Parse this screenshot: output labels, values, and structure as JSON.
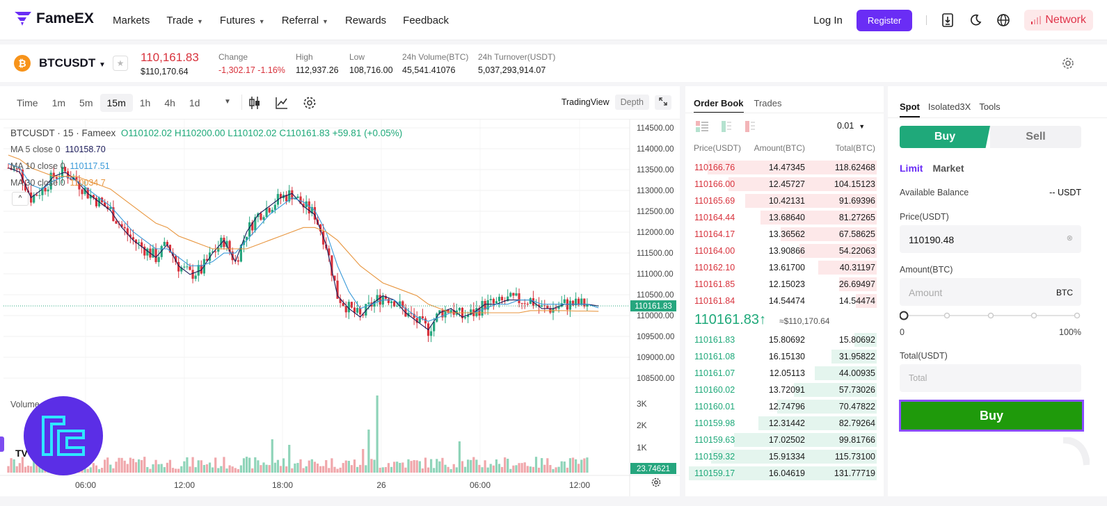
{
  "nav": {
    "brand": "FameEX",
    "links": [
      {
        "label": "Markets",
        "dropdown": false
      },
      {
        "label": "Trade",
        "dropdown": true
      },
      {
        "label": "Futures",
        "dropdown": true
      },
      {
        "label": "Referral",
        "dropdown": true
      },
      {
        "label": "Rewards",
        "dropdown": false
      },
      {
        "label": "Feedback",
        "dropdown": false
      }
    ],
    "login": "Log In",
    "register": "Register",
    "network": "Network",
    "colors": {
      "accent": "#6a2df5",
      "network": "#e0344a"
    }
  },
  "ticker": {
    "pair": "BTCUSDT",
    "coin_symbol": "₿",
    "price": "110,161.83",
    "price_usd": "$110,170.64",
    "stats": [
      {
        "label": "Change",
        "value": "-1,302.17 -1.16%",
        "tone": "red"
      },
      {
        "label": "High",
        "value": "112,937.26",
        "tone": ""
      },
      {
        "label": "Low",
        "value": "108,716.00",
        "tone": ""
      },
      {
        "label": "24h Volume(BTC)",
        "value": "45,541.41076",
        "tone": ""
      },
      {
        "label": "24h Turnover(USDT)",
        "value": "5,037,293,914.07",
        "tone": ""
      }
    ]
  },
  "chart": {
    "timeframes": [
      "Time",
      "1m",
      "5m",
      "15m",
      "1h",
      "4h",
      "1d"
    ],
    "active_timeframe": "15m",
    "view_tradingview": "TradingView",
    "view_depth": "Depth",
    "legend": {
      "symbol": "BTCUSDT · 15 · Fameex",
      "o": "O110102.02",
      "h": "H110200.00",
      "l": "L110102.02",
      "c": "C110161.83",
      "chg": "+59.81 (+0.05%)"
    },
    "ma": [
      {
        "label": "MA 5 close 0",
        "value": "110158.70",
        "color": "#1b1b5a"
      },
      {
        "label": "MA 10 close 0",
        "value": "110117.51",
        "color": "#3a9ad9"
      },
      {
        "label": "MA 30 close 0",
        "value": "110034.7",
        "color": "#e8963f"
      }
    ],
    "volume_label": "Volume",
    "last_price_tag": "110161.83",
    "volume_tag": "23.74621",
    "colors": {
      "up": "#26a67e",
      "down": "#d8323c"
    }
  },
  "chart_data": {
    "type": "line",
    "title": "BTCUSDT · 15 · Fameex",
    "xlabel": "",
    "ylabel": "",
    "y_ticks": [
      "114500.00",
      "114000.00",
      "113500.00",
      "113000.00",
      "112500.00",
      "112000.00",
      "111500.00",
      "111000.00",
      "110500.00",
      "110000.00",
      "109500.00",
      "109000.00",
      "108500.00"
    ],
    "ylim": [
      108500,
      114500
    ],
    "volume_ticks": [
      "3K",
      "2K",
      "1K"
    ],
    "x_ticks": [
      "06:00",
      "12:00",
      "18:00",
      "26",
      "06:00",
      "12:00"
    ],
    "x": [
      0,
      4,
      8,
      12,
      16,
      20,
      24,
      28,
      32,
      36,
      40,
      44,
      48,
      52,
      56,
      60,
      64,
      68,
      72,
      76,
      80,
      84,
      88,
      92,
      96,
      100,
      104,
      108,
      112,
      116,
      120,
      124,
      128,
      132,
      136,
      140,
      144,
      148,
      152,
      156,
      160,
      164,
      168,
      172,
      176,
      180,
      184,
      188,
      192,
      196,
      200,
      204,
      208
    ],
    "series": [
      {
        "name": "MA 5 close 0",
        "color": "#1b1b5a",
        "values": [
          113400,
          113300,
          112700,
          112900,
          113200,
          113300,
          113100,
          112800,
          112600,
          112400,
          112000,
          111700,
          111500,
          111300,
          111600,
          111100,
          110900,
          111000,
          111400,
          111700,
          111200,
          111900,
          112300,
          112500,
          112700,
          112800,
          112500,
          112300,
          111600,
          110400,
          110100,
          109900,
          110200,
          110400,
          110300,
          110000,
          109800,
          109600,
          110000,
          110100,
          109900,
          110000,
          110200,
          110200,
          110300,
          110300,
          110300,
          110100,
          110100,
          110200,
          110200,
          110200,
          110160
        ]
      },
      {
        "name": "MA 10 close 0",
        "color": "#3a9ad9",
        "values": [
          113500,
          113400,
          113000,
          112900,
          113100,
          113200,
          113100,
          112900,
          112700,
          112500,
          112200,
          111900,
          111700,
          111500,
          111500,
          111300,
          111100,
          111100,
          111200,
          111400,
          111400,
          111700,
          112000,
          112300,
          112500,
          112700,
          112600,
          112400,
          111900,
          111100,
          110500,
          110100,
          110200,
          110300,
          110300,
          110100,
          109900,
          109800,
          109900,
          110000,
          110000,
          110000,
          110100,
          110200,
          110200,
          110300,
          110300,
          110200,
          110200,
          110200,
          110200,
          110200,
          110118
        ]
      },
      {
        "name": "MA 30 close 0",
        "color": "#e8963f",
        "values": [
          113700,
          113600,
          113400,
          113300,
          113200,
          113200,
          113200,
          113100,
          113000,
          112900,
          112700,
          112500,
          112300,
          112100,
          112000,
          111800,
          111700,
          111600,
          111500,
          111500,
          111500,
          111500,
          111600,
          111700,
          111800,
          111900,
          112000,
          112000,
          111900,
          111700,
          111400,
          111100,
          110900,
          110700,
          110600,
          110500,
          110400,
          110200,
          110100,
          110000,
          110000,
          110000,
          110000,
          110000,
          110000,
          110000,
          110050,
          110050,
          110050,
          110050,
          110040,
          110040,
          110035
        ]
      }
    ]
  },
  "orderbook": {
    "tabs": [
      "Order Book",
      "Trades"
    ],
    "precision": "0.01",
    "headers": [
      "Price(USDT)",
      "Amount(BTC)",
      "Total(BTC)"
    ],
    "asks": [
      {
        "price": "110166.76",
        "amount": "14.47345",
        "total": "118.62468",
        "depth": 0.9
      },
      {
        "price": "110166.00",
        "amount": "12.45727",
        "total": "104.15123",
        "depth": 0.79
      },
      {
        "price": "110165.69",
        "amount": "10.42131",
        "total": "91.69396",
        "depth": 0.7
      },
      {
        "price": "110164.44",
        "amount": "13.68640",
        "total": "81.27265",
        "depth": 0.62
      },
      {
        "price": "110164.17",
        "amount": "13.36562",
        "total": "67.58625",
        "depth": 0.51
      },
      {
        "price": "110164.00",
        "amount": "13.90866",
        "total": "54.22063",
        "depth": 0.41
      },
      {
        "price": "110162.10",
        "amount": "13.61700",
        "total": "40.31197",
        "depth": 0.31
      },
      {
        "price": "110161.85",
        "amount": "12.15023",
        "total": "26.69497",
        "depth": 0.2
      },
      {
        "price": "110161.84",
        "amount": "14.54474",
        "total": "14.54474",
        "depth": 0.11
      }
    ],
    "mid_price": "110161.83",
    "mid_arrow": "↑",
    "mid_usd": "≈$110,170.64",
    "bids": [
      {
        "price": "110161.83",
        "amount": "15.80692",
        "total": "15.80692",
        "depth": 0.12
      },
      {
        "price": "110161.08",
        "amount": "16.15130",
        "total": "31.95822",
        "depth": 0.24
      },
      {
        "price": "110161.07",
        "amount": "12.05113",
        "total": "44.00935",
        "depth": 0.33
      },
      {
        "price": "110160.02",
        "amount": "13.72091",
        "total": "57.73026",
        "depth": 0.44
      },
      {
        "price": "110160.01",
        "amount": "12.74796",
        "total": "70.47822",
        "depth": 0.53
      },
      {
        "price": "110159.98",
        "amount": "12.31442",
        "total": "82.79264",
        "depth": 0.63
      },
      {
        "price": "110159.63",
        "amount": "17.02502",
        "total": "99.81766",
        "depth": 0.76
      },
      {
        "price": "110159.32",
        "amount": "15.91334",
        "total": "115.73100",
        "depth": 0.88
      },
      {
        "price": "110159.17",
        "amount": "16.04619",
        "total": "131.77719",
        "depth": 1.0
      }
    ]
  },
  "trade": {
    "tabs": [
      "Spot",
      "Isolated3X",
      "Tools"
    ],
    "buy": "Buy",
    "sell": "Sell",
    "order_types": [
      "Limit",
      "Market"
    ],
    "available_label": "Available Balance",
    "available_value": "-- USDT",
    "price_label": "Price(USDT)",
    "price_value": "110190.48",
    "amount_label": "Amount(BTC)",
    "amount_placeholder": "Amount",
    "amount_unit": "BTC",
    "slider_min": "0",
    "slider_max": "100%",
    "slider_value": 0,
    "total_label": "Total(USDT)",
    "total_placeholder": "Total",
    "submit": "Buy"
  }
}
